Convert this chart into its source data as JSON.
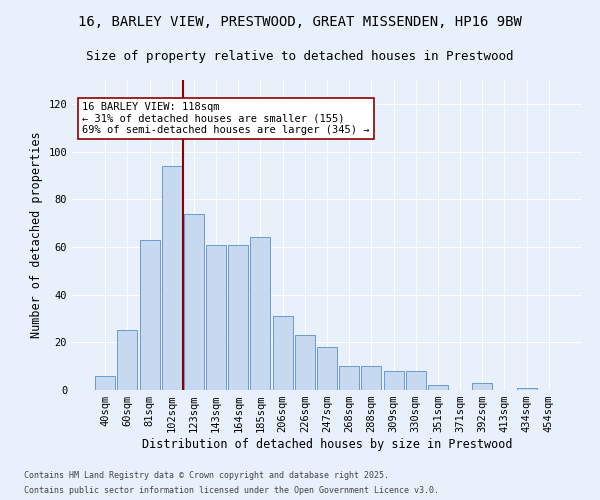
{
  "title1": "16, BARLEY VIEW, PRESTWOOD, GREAT MISSENDEN, HP16 9BW",
  "title2": "Size of property relative to detached houses in Prestwood",
  "xlabel": "Distribution of detached houses by size in Prestwood",
  "ylabel": "Number of detached properties",
  "categories": [
    "40sqm",
    "60sqm",
    "81sqm",
    "102sqm",
    "123sqm",
    "143sqm",
    "164sqm",
    "185sqm",
    "206sqm",
    "226sqm",
    "247sqm",
    "268sqm",
    "288sqm",
    "309sqm",
    "330sqm",
    "351sqm",
    "371sqm",
    "392sqm",
    "413sqm",
    "434sqm",
    "454sqm"
  ],
  "values": [
    6,
    25,
    63,
    94,
    74,
    61,
    61,
    64,
    31,
    23,
    18,
    10,
    10,
    8,
    8,
    2,
    0,
    3,
    0,
    1,
    0
  ],
  "bar_color": "#c6d9f0",
  "bar_edge_color": "#5b8fc9",
  "vline_index": 3.5,
  "vline_color": "#8b0000",
  "annotation_text": "16 BARLEY VIEW: 118sqm\n← 31% of detached houses are smaller (155)\n69% of semi-detached houses are larger (345) →",
  "annotation_box_color": "white",
  "annotation_box_edge": "#8b0000",
  "footnote1": "Contains HM Land Registry data © Crown copyright and database right 2025.",
  "footnote2": "Contains public sector information licensed under the Open Government Licence v3.0.",
  "ylim": [
    0,
    130
  ],
  "yticks": [
    0,
    20,
    40,
    60,
    80,
    100,
    120
  ],
  "background_color": "#e8f0fb",
  "grid_color": "white",
  "title_fontsize": 10,
  "subtitle_fontsize": 9,
  "tick_fontsize": 7.5,
  "label_fontsize": 8.5,
  "annot_fontsize": 7.5,
  "footnote_fontsize": 6
}
